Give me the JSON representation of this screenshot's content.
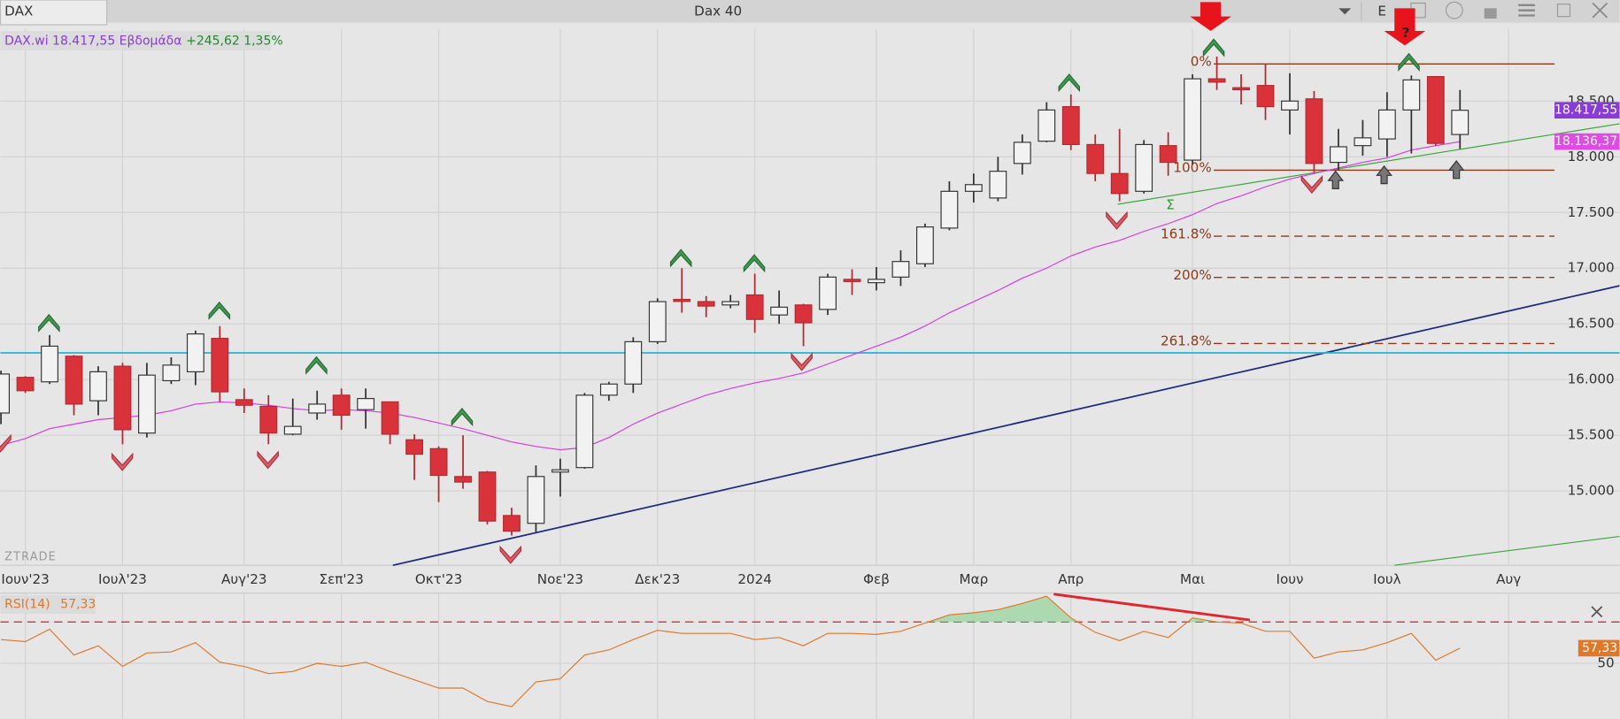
{
  "header": {
    "tab": "DAX",
    "title": "Dax 40",
    "button": "E"
  },
  "chart_data": [
    {
      "type": "candlestick",
      "legend": {
        "symbol": "DAX.wi 18.417,55 Εβδομάδα",
        "change": "+245,62 1,35%"
      },
      "watermark": "ZTRADE",
      "marker": "Σ",
      "question": "?",
      "categories": [
        null,
        "Ιουν'23",
        null,
        null,
        null,
        "Ιουλ'23",
        null,
        null,
        null,
        null,
        "Αυγ'23",
        null,
        null,
        null,
        "Σεπ'23",
        null,
        null,
        null,
        "Οκτ'23",
        null,
        null,
        null,
        null,
        "Νοε'23",
        null,
        null,
        null,
        "Δεκ'23",
        null,
        null,
        null,
        "2024",
        null,
        null,
        null,
        null,
        "Φεβ",
        null,
        null,
        null,
        "Μαρ",
        null,
        null,
        null,
        "Απρ",
        null,
        null,
        null,
        null,
        "Μαι",
        null,
        null,
        null,
        "Ιουν",
        null,
        null,
        null,
        "Ιουλ",
        null,
        null,
        null,
        null,
        "Αυγ",
        null
      ],
      "open": [
        15700,
        16020,
        15980,
        16210,
        15810,
        16120,
        15520,
        15990,
        16070,
        16370,
        15820,
        15760,
        15510,
        15700,
        15860,
        15730,
        15800,
        15460,
        15380,
        15130,
        15170,
        14780,
        14710,
        15170,
        15210,
        15860,
        15960,
        16340,
        16720,
        16700,
        16670,
        16760,
        16580,
        16670,
        16630,
        16900,
        16870,
        16920,
        17040,
        17360,
        17690,
        17630,
        17940,
        18140,
        18450,
        18110,
        17850,
        17690,
        18100,
        17970,
        18700,
        18620,
        18640,
        18420,
        18520,
        17950,
        18100,
        18160,
        18420,
        18720,
        18200,
        null,
        null,
        null
      ],
      "high": [
        16080,
        16030,
        16400,
        16220,
        16120,
        16150,
        16150,
        16200,
        16440,
        16480,
        15920,
        15860,
        15830,
        15900,
        15920,
        15920,
        15800,
        15510,
        15400,
        15500,
        15180,
        14850,
        15230,
        15290,
        15880,
        15980,
        16380,
        16730,
        17000,
        16750,
        16760,
        16950,
        16800,
        16680,
        16950,
        16990,
        17010,
        17160,
        17400,
        17780,
        17850,
        18000,
        18200,
        18490,
        18560,
        18200,
        18250,
        18150,
        18220,
        18740,
        18900,
        18740,
        18830,
        18750,
        18590,
        18250,
        18330,
        18580,
        18730,
        18720,
        18600,
        null,
        null,
        null
      ],
      "low": [
        15600,
        15880,
        15960,
        15680,
        15680,
        15420,
        15480,
        15960,
        15950,
        15800,
        15700,
        15420,
        15500,
        15640,
        15550,
        15560,
        15420,
        15100,
        14900,
        15020,
        14700,
        14600,
        14620,
        14950,
        15200,
        15810,
        15880,
        16320,
        16600,
        16560,
        16640,
        16420,
        16500,
        16300,
        16580,
        16760,
        16800,
        16840,
        17010,
        17340,
        17590,
        17600,
        17840,
        18130,
        18060,
        17780,
        17600,
        17670,
        17830,
        17930,
        18600,
        18470,
        18330,
        18200,
        17860,
        17880,
        18010,
        18000,
        18030,
        18100,
        18070,
        null,
        null,
        null
      ],
      "close": [
        16050,
        15900,
        16300,
        15780,
        16070,
        15550,
        16040,
        16130,
        16410,
        15890,
        15770,
        15520,
        15580,
        15780,
        15680,
        15830,
        15510,
        15330,
        15140,
        15080,
        14730,
        14640,
        15130,
        15190,
        15860,
        15960,
        16340,
        16700,
        16710,
        16660,
        16700,
        16540,
        16650,
        16510,
        16920,
        16880,
        16900,
        17060,
        17370,
        17690,
        17750,
        17870,
        18130,
        18420,
        18110,
        17850,
        17670,
        18110,
        17950,
        18700,
        18670,
        18610,
        18450,
        18500,
        17940,
        18090,
        18170,
        18420,
        18690,
        18120,
        18417.55,
        null,
        null,
        null
      ],
      "close_label": "18.417,55",
      "up_color": "#f2f2f2",
      "down_color": "#d9323a",
      "series": [
        {
          "name": "MA",
          "color": "#d63be0",
          "values": [
            15410,
            15470,
            15560,
            15600,
            15640,
            15660,
            15680,
            15720,
            15780,
            15800,
            15790,
            15770,
            15740,
            15720,
            15730,
            15720,
            15700,
            15660,
            15610,
            15560,
            15500,
            15440,
            15400,
            15370,
            15390,
            15480,
            15600,
            15700,
            15780,
            15860,
            15920,
            15970,
            16010,
            16060,
            16140,
            16220,
            16300,
            16380,
            16480,
            16600,
            16700,
            16800,
            16910,
            17000,
            17110,
            17190,
            17250,
            17330,
            17400,
            17480,
            17580,
            17650,
            17730,
            17800,
            17850,
            17900,
            17950,
            17990,
            18060,
            18100,
            18136.37,
            null,
            null,
            null
          ],
          "last_label": "18.136,37"
        }
      ],
      "hline": {
        "value": 16240,
        "color": "#1fb6d8"
      },
      "fib_levels": [
        {
          "label": "0%",
          "value": 18833,
          "dashed": false
        },
        {
          "label": "100%",
          "value": 17880,
          "dashed": false
        },
        {
          "label": "161.8%",
          "value": 17287,
          "dashed": true
        },
        {
          "label": "200%",
          "value": 16917,
          "dashed": true
        },
        {
          "label": "261.8%",
          "value": 16324,
          "dashed": true
        }
      ],
      "ylim": [
        14333,
        19148
      ],
      "yticks": [
        {
          "value": 15000,
          "label": "15.000"
        },
        {
          "value": 15500,
          "label": "15.500"
        },
        {
          "value": 16000,
          "label": "16.000"
        },
        {
          "value": 16500,
          "label": "16.500"
        },
        {
          "value": 17000,
          "label": "17.000"
        },
        {
          "value": 17500,
          "label": "17.500"
        },
        {
          "value": 18000,
          "label": "18.000"
        },
        {
          "value": 18500,
          "label": "18.500"
        }
      ],
      "grid": true
    },
    {
      "type": "line",
      "label": "RSI(14)",
      "value_label": "57,33",
      "series": [
        {
          "name": "RSI(14)",
          "color": "#e0782a",
          "values": [
            61.5,
            60.5,
            66.5,
            54,
            58.5,
            48.5,
            55,
            55.5,
            60,
            50.5,
            48.5,
            45,
            46,
            50,
            48.5,
            50.5,
            46,
            42,
            38,
            38,
            31.5,
            29,
            41,
            42.5,
            54,
            56.5,
            61.5,
            66,
            64.5,
            64.5,
            64.5,
            61.5,
            62.5,
            58.5,
            64.5,
            64.5,
            64,
            65.5,
            69.5,
            73.5,
            74.5,
            76,
            79,
            82.5,
            72,
            65,
            61,
            65.5,
            62.5,
            72,
            70,
            69.5,
            65.5,
            65.5,
            52.5,
            55.5,
            56.5,
            60,
            64.5,
            51.5,
            57.33,
            null,
            null,
            null
          ]
        }
      ],
      "level": 70,
      "fill_color": "#9fd6a4",
      "ylim": [
        23,
        84
      ],
      "yticks": [
        50
      ]
    }
  ]
}
